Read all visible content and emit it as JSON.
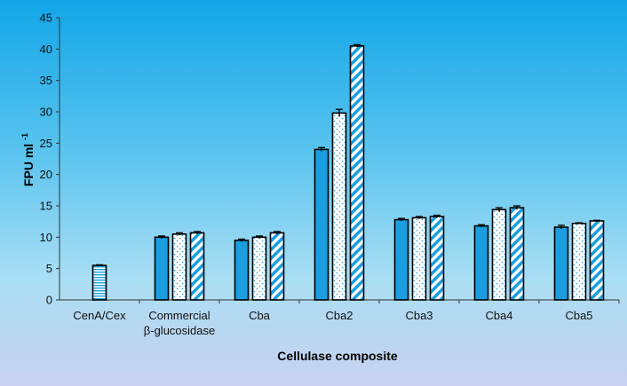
{
  "chart_data": {
    "type": "bar",
    "title": "",
    "xlabel": "Cellulase composite",
    "ylabel": "FPU ml",
    "ylabel_superscript": "-1",
    "ylim": [
      0,
      45
    ],
    "yticks": [
      0,
      5,
      10,
      15,
      20,
      25,
      30,
      35,
      40,
      45
    ],
    "categories": [
      [
        "CenA/Cex"
      ],
      [
        "Commercial",
        "β-glucosidase"
      ],
      [
        "Cba"
      ],
      [
        "Cba2"
      ],
      [
        "Cba3"
      ],
      [
        "Cba4"
      ],
      [
        "Cba5"
      ]
    ],
    "series": [
      {
        "fill": "solid",
        "color": "#1a9ee0",
        "values": [
          null,
          10.0,
          9.5,
          24.0,
          12.8,
          11.8,
          11.6
        ],
        "errors": [
          null,
          0.2,
          0.2,
          0.3,
          0.2,
          0.2,
          0.3
        ]
      },
      {
        "fill": "dotted",
        "color": "#1a9ee0",
        "values": [
          5.5,
          10.5,
          10.0,
          29.8,
          13.1,
          14.4,
          12.2
        ],
        "errors": [
          0.1,
          0.2,
          0.2,
          0.6,
          0.2,
          0.3,
          0.1
        ]
      },
      {
        "fill": "diagonal-stripes",
        "color": "#1a9ee0",
        "values": [
          null,
          10.7,
          10.7,
          40.5,
          13.3,
          14.7,
          12.6
        ],
        "errors": [
          null,
          0.2,
          0.2,
          0.2,
          0.2,
          0.3,
          0.1
        ]
      }
    ],
    "cenacex_fill": "horizontal-stripes",
    "grid": false,
    "legend": "none"
  }
}
